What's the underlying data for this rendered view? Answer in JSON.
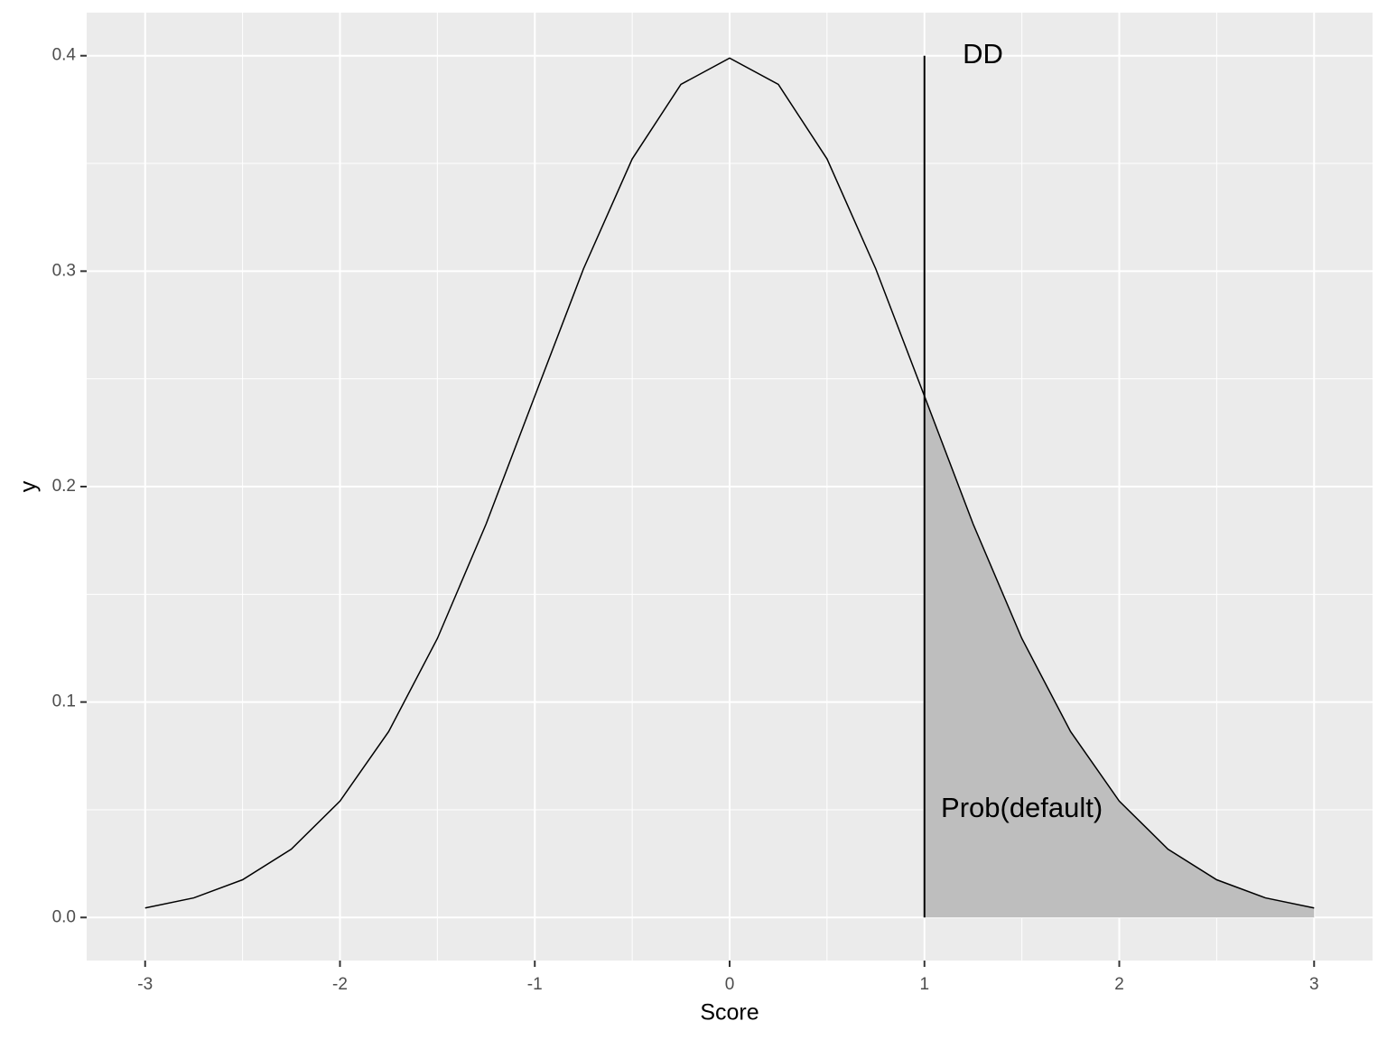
{
  "chart_data": {
    "type": "line",
    "xlabel": "Score",
    "ylabel": "y",
    "x": [
      -3,
      -2.75,
      -2.5,
      -2.25,
      -2,
      -1.75,
      -1.5,
      -1.25,
      -1,
      -0.75,
      -0.5,
      -0.25,
      0,
      0.25,
      0.5,
      0.75,
      1,
      1.25,
      1.5,
      1.75,
      2,
      2.25,
      2.5,
      2.75,
      3
    ],
    "series": [
      {
        "color": "#000000",
        "values": [
          0.0044,
          0.0091,
          0.0175,
          0.0317,
          0.054,
          0.0863,
          0.1295,
          0.1826,
          0.242,
          0.3011,
          0.3521,
          0.3867,
          0.3989,
          0.3867,
          0.3521,
          0.3011,
          0.242,
          0.1826,
          0.1295,
          0.0863,
          0.054,
          0.0317,
          0.0175,
          0.0091,
          0.0044
        ]
      }
    ],
    "area": {
      "color": "#bebebe",
      "x": [
        1,
        1.25,
        1.5,
        1.75,
        2,
        2.25,
        2.5,
        2.75,
        3
      ],
      "values": [
        0.242,
        0.1826,
        0.1295,
        0.0863,
        0.054,
        0.0317,
        0.0175,
        0.0091,
        0.0044
      ]
    },
    "vline": {
      "x": 1,
      "ymin": 0,
      "ymax": 0.4,
      "color": "#000000"
    },
    "annotations": [
      {
        "text": "DD",
        "x": 1.3,
        "y": 0.4
      },
      {
        "text": "Prob(default)",
        "x": 1.5,
        "y": 0.05
      }
    ],
    "xlim": [
      -3.3,
      3.3
    ],
    "ylim": [
      -0.02,
      0.42
    ],
    "xticks": [
      -3,
      -2,
      -1,
      0,
      1,
      2,
      3
    ],
    "yticks": [
      {
        "value": 0,
        "label": "0.0"
      },
      0.1,
      0.2,
      0.3,
      0.4
    ],
    "grid": true
  }
}
